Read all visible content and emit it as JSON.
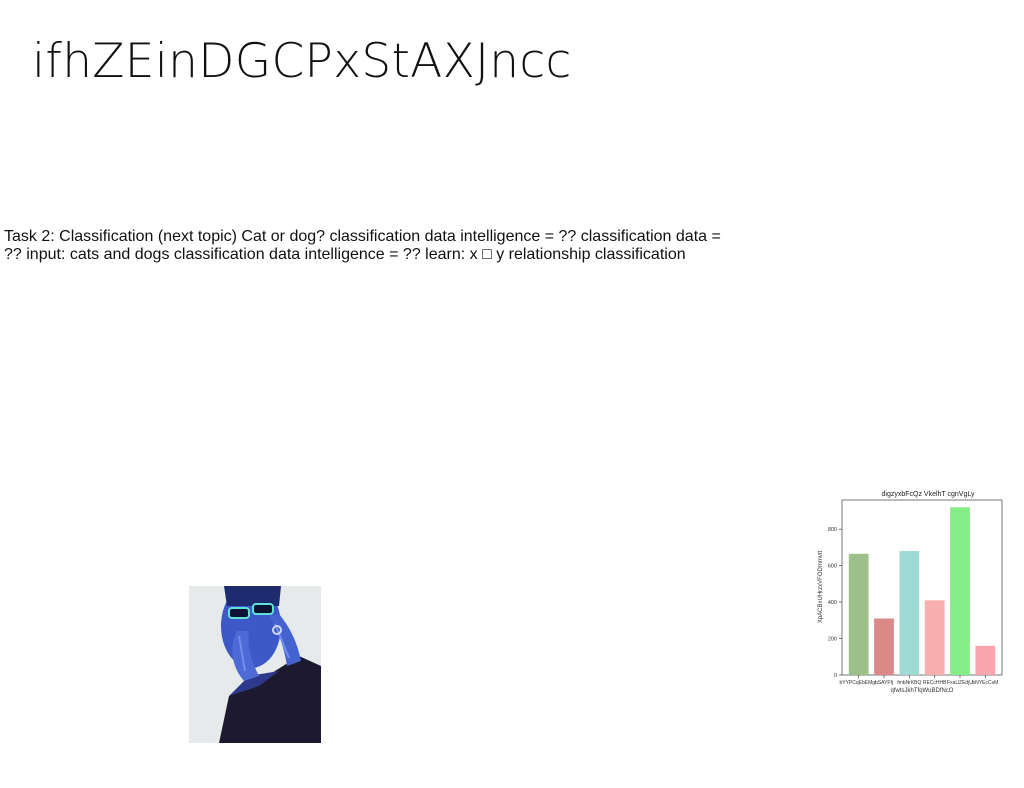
{
  "slide": {
    "title": "ifhZEinDGCPxStAXJncc",
    "body": "Task 2: Classification (next topic) Cat or dog? classification data intelligence = ?? classification data = ?? input: cats and dogs classification data intelligence = ?? learn: x □ y relationship classification"
  },
  "photo": {
    "icon": "person-with-sunglasses-photo"
  },
  "chart_data": {
    "type": "bar",
    "title": "digzyxbFcQz VkelhT cgnVgLy",
    "xlabel": "qfwtsJkhTfqWuBDfNcO",
    "ylabel": "XpACBxUHrzxVFODmmvtt",
    "categories": [
      "bYYPCqEbEMgn",
      "LSAYFfj",
      "fmbNrKBQ",
      "RECcHHB",
      "FxaUZEdjU",
      "bNYEcCsM"
    ],
    "values": [
      665,
      310,
      680,
      410,
      920,
      160
    ],
    "colors": [
      "#9dc08b",
      "#d98a87",
      "#9fd9d4",
      "#f9aeb0",
      "#86ec86",
      "#fba6ae"
    ],
    "yticks": [
      0,
      200,
      400,
      600,
      800
    ],
    "ylim": [
      0,
      960
    ],
    "grid": false
  }
}
